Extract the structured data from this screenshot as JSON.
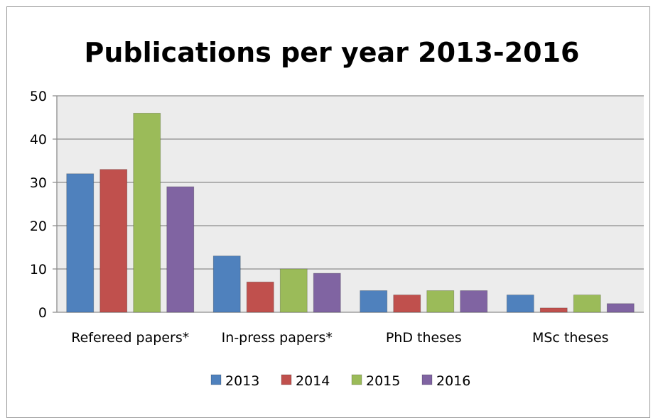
{
  "chart_data": {
    "type": "bar",
    "title": "Publications per year 2013-2016",
    "xlabel": "",
    "ylabel": "",
    "ylim": [
      0,
      50
    ],
    "yticks": [
      0,
      10,
      20,
      30,
      40,
      50
    ],
    "grid": true,
    "legend_position": "bottom",
    "categories": [
      "Refereed papers*",
      "In-press papers*",
      "PhD theses",
      "MSc theses"
    ],
    "series": [
      {
        "name": "2013",
        "color": "#4f81bd",
        "values": [
          32,
          13,
          5,
          4
        ]
      },
      {
        "name": "2014",
        "color": "#c0504d",
        "values": [
          33,
          7,
          4,
          1
        ]
      },
      {
        "name": "2015",
        "color": "#9bbb59",
        "values": [
          46,
          10,
          5,
          4
        ]
      },
      {
        "name": "2016",
        "color": "#8064a2",
        "values": [
          29,
          9,
          5,
          2
        ]
      }
    ]
  }
}
